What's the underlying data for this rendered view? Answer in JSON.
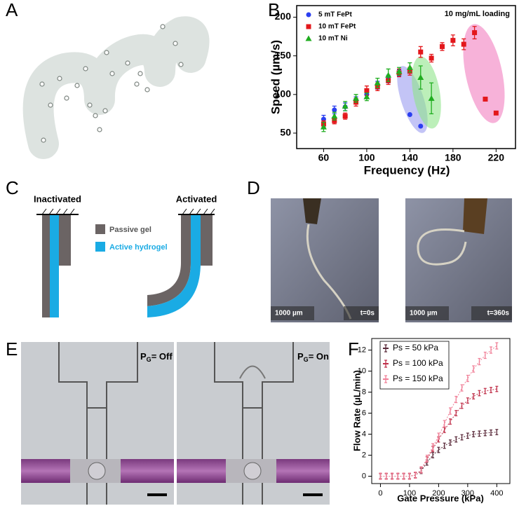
{
  "panel_labels": [
    "A",
    "B",
    "C",
    "D",
    "E",
    "F"
  ],
  "chart_data": [
    {
      "type": "scatter",
      "annotation": "10 mg/mL loading",
      "x_label": "Frequency (Hz)",
      "y_label": "Speed (µm/s)",
      "xlim": [
        35,
        238
      ],
      "ylim": [
        30,
        215
      ],
      "xticks": [
        60,
        100,
        140,
        180,
        220
      ],
      "yticks": [
        50,
        100,
        150,
        200
      ],
      "legend": "upper left",
      "series": [
        {
          "name": "5 mT FePt",
          "color": "#2b3ff0",
          "marker": "circle",
          "x": [
            60,
            70,
            80,
            90,
            100,
            110,
            120,
            130,
            140,
            150
          ],
          "values": [
            68,
            80,
            84,
            93,
            100,
            112,
            120,
            128,
            74,
            59
          ],
          "errors": [
            5,
            5,
            5,
            4,
            4,
            5,
            5,
            4,
            0,
            0
          ]
        },
        {
          "name": "10 mT FePt",
          "color": "#e3171b",
          "marker": "square",
          "x": [
            60,
            70,
            80,
            90,
            100,
            110,
            120,
            130,
            140,
            150,
            160,
            170,
            180,
            190,
            200,
            210,
            220
          ],
          "values": [
            62,
            66,
            72,
            90,
            105,
            110,
            118,
            128,
            130,
            155,
            147,
            162,
            170,
            165,
            180,
            94,
            76
          ],
          "errors": [
            4,
            4,
            4,
            5,
            6,
            5,
            5,
            5,
            5,
            7,
            5,
            5,
            7,
            7,
            8,
            0,
            0
          ]
        },
        {
          "name": "10 mT Ni",
          "color": "#1fad1f",
          "marker": "triangle",
          "x": [
            60,
            70,
            80,
            90,
            100,
            110,
            120,
            130,
            140,
            150,
            160
          ],
          "values": [
            58,
            72,
            85,
            95,
            97,
            115,
            125,
            130,
            135,
            122,
            95
          ],
          "errors": [
            6,
            5,
            6,
            5,
            5,
            6,
            8,
            5,
            6,
            15,
            20
          ]
        }
      ]
    },
    {
      "type": "line",
      "x_label": "Gate Pressure (kPa)",
      "y_label": "Flow Rate (µL/min)",
      "x": [
        0,
        20,
        40,
        60,
        80,
        100,
        120,
        140,
        160,
        180,
        200,
        220,
        240,
        260,
        280,
        300,
        320,
        340,
        360,
        380,
        400
      ],
      "xlim": [
        -30,
        445
      ],
      "ylim": [
        -0.7,
        13.1
      ],
      "xticks": [
        0,
        100,
        200,
        300,
        400
      ],
      "yticks": [
        0,
        2,
        4,
        6,
        8,
        10,
        12
      ],
      "legend": "upper left",
      "series": [
        {
          "name": "Ps = 50 kPa",
          "color": "#5a2a3a",
          "error": 0.25,
          "values": [
            0,
            0,
            0,
            0,
            0,
            0,
            0.1,
            0.5,
            1.3,
            2.0,
            2.5,
            2.9,
            3.2,
            3.5,
            3.7,
            3.85,
            4.0,
            4.05,
            4.1,
            4.15,
            4.2
          ]
        },
        {
          "name": "Ps = 100 kPa",
          "color": "#c0304a",
          "error": 0.25,
          "values": [
            0,
            0,
            0,
            0,
            0,
            0,
            0.1,
            0.6,
            1.6,
            2.6,
            3.5,
            4.4,
            5.2,
            6.0,
            6.7,
            7.2,
            7.6,
            7.9,
            8.1,
            8.2,
            8.3
          ]
        },
        {
          "name": "Ps = 150 kPa",
          "color": "#f08098",
          "error": 0.3,
          "values": [
            0,
            0,
            0,
            0,
            0,
            0,
            0.1,
            0.6,
            1.7,
            2.8,
            3.8,
            5.0,
            6.2,
            7.3,
            8.4,
            9.3,
            10.2,
            10.9,
            11.5,
            12.0,
            12.4
          ]
        }
      ]
    }
  ],
  "panel_c": {
    "inactivated": "Inactivated",
    "activated": "Activated",
    "legend": [
      "Passive gel",
      "Active hydrogel"
    ]
  },
  "panel_d": {
    "scale_left": "1000 µm",
    "time_left": "t=0s",
    "scale_right": "1000 µm",
    "time_right": "t=360s"
  },
  "panel_e": {
    "left": {
      "symbol": "P",
      "subscript": "G",
      "state": "= Off"
    },
    "right": {
      "symbol": "P",
      "subscript": "G",
      "state": "= On"
    }
  }
}
